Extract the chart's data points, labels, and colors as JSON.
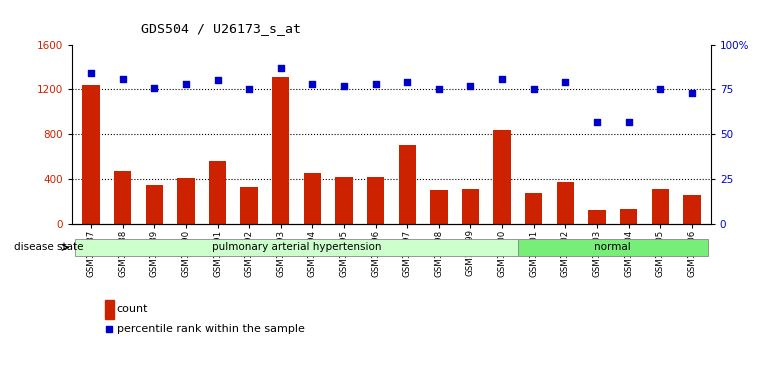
{
  "title": "GDS504 / U26173_s_at",
  "categories": [
    "GSM12587",
    "GSM12588",
    "GSM12589",
    "GSM12590",
    "GSM12591",
    "GSM12592",
    "GSM12593",
    "GSM12594",
    "GSM12595",
    "GSM12596",
    "GSM12597",
    "GSM12598",
    "GSM12599",
    "GSM12600",
    "GSM12601",
    "GSM12602",
    "GSM12603",
    "GSM12604",
    "GSM12605",
    "GSM12606"
  ],
  "counts": [
    1240,
    470,
    350,
    410,
    560,
    330,
    1310,
    450,
    420,
    420,
    700,
    300,
    310,
    840,
    280,
    370,
    120,
    130,
    310,
    255
  ],
  "percentiles": [
    84,
    81,
    76,
    78,
    80,
    75,
    87,
    78,
    77,
    78,
    79,
    75,
    77,
    81,
    75,
    79,
    57,
    57,
    75,
    73
  ],
  "disease_groups": [
    {
      "label": "pulmonary arterial hypertension",
      "start": 0,
      "end": 13,
      "color": "#ccffcc"
    },
    {
      "label": "normal",
      "start": 14,
      "end": 19,
      "color": "#77ee77"
    }
  ],
  "bar_color": "#cc2200",
  "dot_color": "#0000cc",
  "left_ylim": [
    0,
    1600
  ],
  "right_ylim": [
    0,
    100
  ],
  "left_yticks": [
    0,
    400,
    800,
    1200,
    1600
  ],
  "right_yticks": [
    0,
    25,
    50,
    75,
    100
  ],
  "right_yticklabels": [
    "0",
    "25",
    "50",
    "75",
    "100%"
  ],
  "grid_values": [
    400,
    800,
    1200
  ],
  "background_color": "#ffffff"
}
